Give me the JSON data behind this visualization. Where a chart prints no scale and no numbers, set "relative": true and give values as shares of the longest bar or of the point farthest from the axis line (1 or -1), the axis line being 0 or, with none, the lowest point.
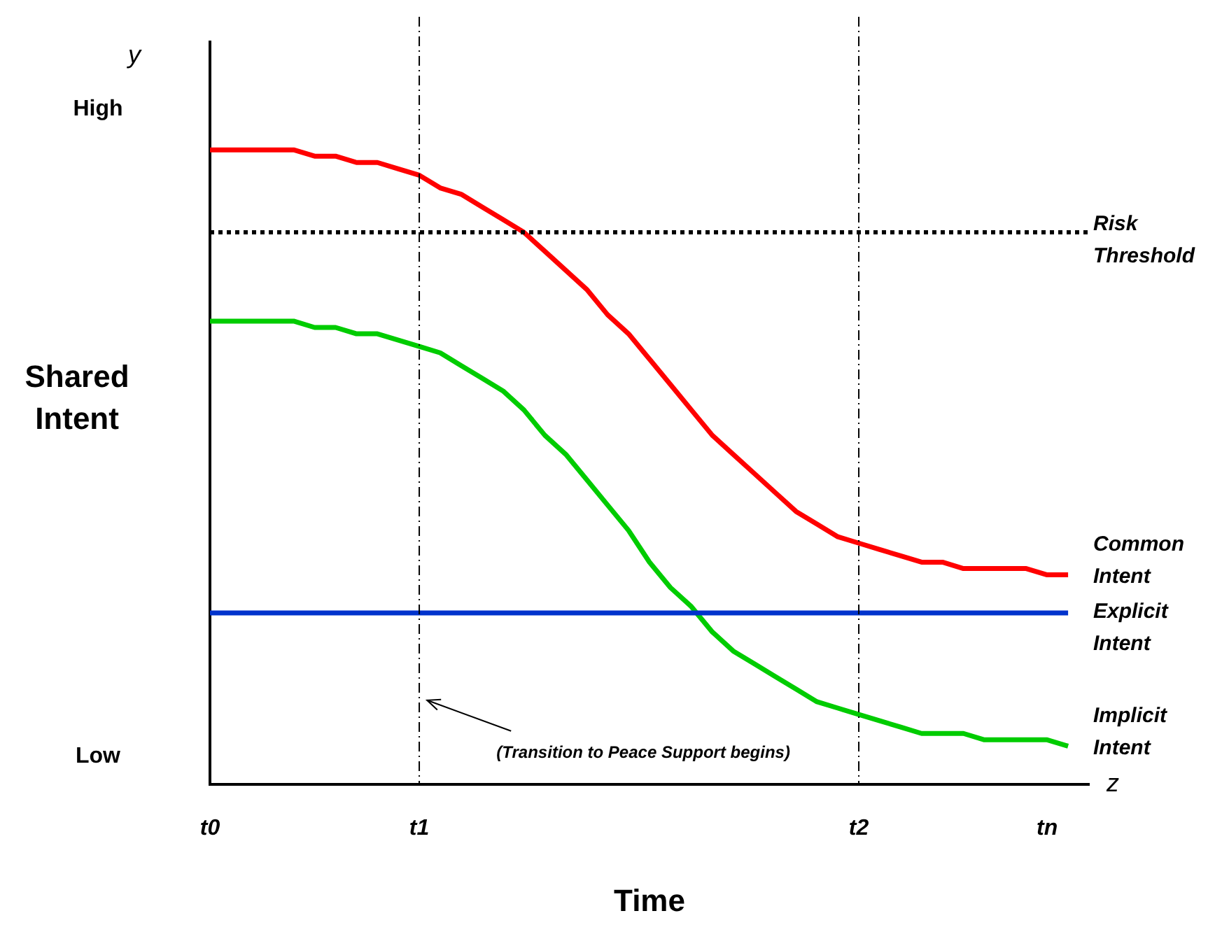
{
  "chart_data": {
    "type": "line",
    "relative": true,
    "xlabel": "Time",
    "ylabel": "Shared Intent",
    "legend": false,
    "categories": [
      "t0",
      null,
      null,
      null,
      null,
      null,
      null,
      null,
      null,
      null,
      "t1",
      null,
      null,
      null,
      null,
      null,
      null,
      null,
      null,
      null,
      null,
      null,
      null,
      null,
      null,
      null,
      null,
      null,
      null,
      null,
      null,
      "t2",
      null,
      null,
      null,
      null,
      null,
      null,
      null,
      null,
      "tn",
      null,
      null
    ],
    "series": [
      {
        "name": "Common Intent",
        "color": "#ff0000",
        "values": [
          1.0,
          1.0,
          1.0,
          1.0,
          1.0,
          0.99,
          0.99,
          0.98,
          0.98,
          0.97,
          0.96,
          0.94,
          0.93,
          0.91,
          0.89,
          0.87,
          0.84,
          0.81,
          0.78,
          0.74,
          0.71,
          0.67,
          0.63,
          0.59,
          0.55,
          0.52,
          0.49,
          0.46,
          0.43,
          0.41,
          0.39,
          0.38,
          0.37,
          0.36,
          0.35,
          0.35,
          0.34,
          0.34,
          0.34,
          0.34,
          0.33,
          0.33,
          null
        ]
      },
      {
        "name": "Explicit Intent",
        "color": "#0033cc",
        "values": [
          0.27,
          0.27,
          0.27,
          0.27,
          0.27,
          0.27,
          0.27,
          0.27,
          0.27,
          0.27,
          0.27,
          0.27,
          0.27,
          0.27,
          0.27,
          0.27,
          0.27,
          0.27,
          0.27,
          0.27,
          0.27,
          0.27,
          0.27,
          0.27,
          0.27,
          0.27,
          0.27,
          0.27,
          0.27,
          0.27,
          0.27,
          0.27,
          0.27,
          0.27,
          0.27,
          0.27,
          0.27,
          0.27,
          0.27,
          0.27,
          0.27,
          0.27,
          null
        ]
      },
      {
        "name": "Implicit Intent",
        "color": "#00cc00",
        "values": [
          0.73,
          0.73,
          0.73,
          0.73,
          0.73,
          0.72,
          0.72,
          0.71,
          0.71,
          0.7,
          0.69,
          0.68,
          0.66,
          0.64,
          0.62,
          0.59,
          0.55,
          0.52,
          0.48,
          0.44,
          0.4,
          0.35,
          0.31,
          0.28,
          0.24,
          0.21,
          0.19,
          0.17,
          0.15,
          0.13,
          0.12,
          0.11,
          0.1,
          0.09,
          0.08,
          0.08,
          0.08,
          0.07,
          0.07,
          0.07,
          0.07,
          0.06,
          null
        ]
      }
    ],
    "ref_lines": [
      {
        "axis": "y",
        "value": 0.87,
        "label": "Risk Threshold",
        "color": "#000000",
        "line_style": "dotted"
      },
      {
        "axis": "x",
        "value": "t1",
        "color": "#000000",
        "line_style": "dashed"
      },
      {
        "axis": "x",
        "value": "t2",
        "color": "#000000",
        "line_style": "dashed"
      }
    ],
    "annotations": [
      "y",
      "High",
      "Low",
      "z",
      "(Transition to Peace Support begins)"
    ]
  }
}
